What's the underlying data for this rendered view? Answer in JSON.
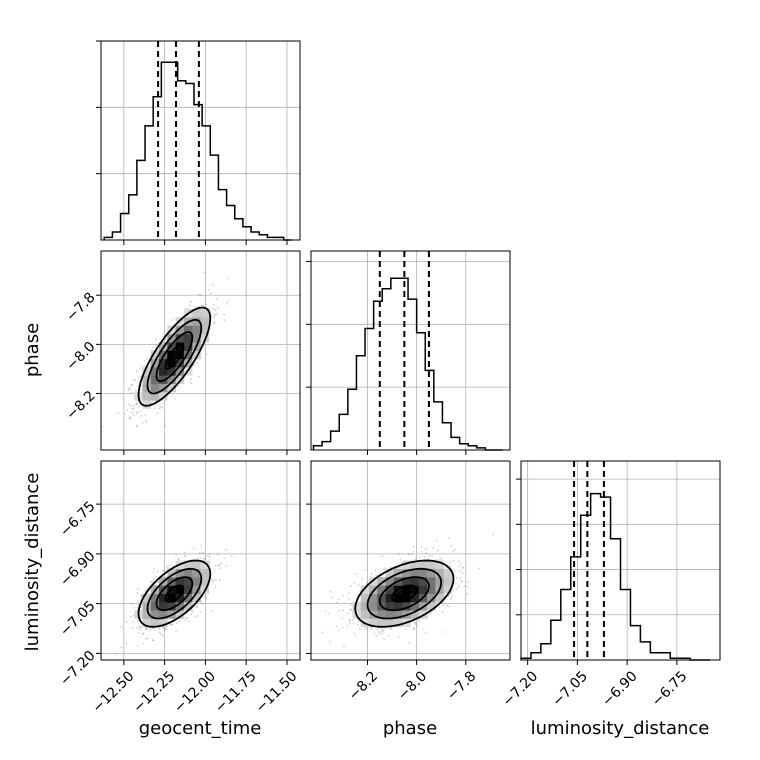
{
  "figure": {
    "kind": "corner-plot"
  },
  "chart_data": [
    {
      "type": "bar",
      "panel": "hist-geocent_time",
      "parameter": "geocent_time",
      "bins": [
        -12.62,
        -12.57,
        -12.52,
        -12.47,
        -12.42,
        -12.37,
        -12.32,
        -12.27,
        -12.22,
        -12.17,
        -12.12,
        -12.07,
        -12.02,
        -11.97,
        -11.92,
        -11.87,
        -11.82,
        -11.77,
        -11.72,
        -11.67,
        -11.62,
        -11.57,
        -11.52,
        -11.47
      ],
      "counts": [
        1,
        3,
        10,
        17,
        30,
        43,
        54,
        67,
        67,
        60,
        59,
        51,
        43,
        32,
        19,
        13,
        8,
        5,
        3,
        2,
        1,
        1,
        0
      ],
      "ylim": [
        0,
        75
      ],
      "yticks": [
        25,
        50,
        75
      ],
      "quantiles": [
        -12.29,
        -12.18,
        -12.04
      ]
    },
    {
      "type": "bar",
      "panel": "hist-phase",
      "parameter": "phase",
      "bins": [
        -8.42,
        -8.385,
        -8.35,
        -8.315,
        -8.28,
        -8.245,
        -8.21,
        -8.175,
        -8.14,
        -8.105,
        -8.07,
        -8.035,
        -8.0,
        -7.965,
        -7.93,
        -7.895,
        -7.86,
        -7.825,
        -7.79,
        -7.755,
        -7.72,
        -7.685,
        -7.65
      ],
      "counts": [
        2,
        4,
        9,
        17,
        29,
        45,
        58,
        71,
        77,
        82,
        82,
        72,
        56,
        38,
        23,
        13,
        6,
        3,
        2,
        1,
        0,
        0
      ],
      "ylim": [
        0,
        95
      ],
      "yticks": [
        30,
        60,
        90
      ],
      "quantiles": [
        -8.15,
        -8.05,
        -7.95
      ]
    },
    {
      "type": "bar",
      "panel": "hist-luminosity_distance",
      "parameter": "luminosity_distance",
      "bins": [
        -7.22,
        -7.19,
        -7.16,
        -7.13,
        -7.1,
        -7.07,
        -7.04,
        -7.01,
        -6.98,
        -6.95,
        -6.92,
        -6.89,
        -6.86,
        -6.83,
        -6.8,
        -6.77,
        -6.74,
        -6.71,
        -6.68,
        -6.65
      ],
      "counts": [
        1,
        4,
        9,
        22,
        39,
        57,
        80,
        92,
        90,
        67,
        39,
        19,
        10,
        4,
        4,
        1,
        1,
        0,
        0
      ],
      "ylim": [
        0,
        110
      ],
      "yticks": [
        25,
        50,
        75,
        100
      ],
      "quantiles": [
        -7.06,
        -7.02,
        -6.97
      ]
    },
    {
      "type": "scatter",
      "panel": "2d-geocent_time-phase",
      "x_param": "geocent_time",
      "y_param": "phase",
      "center": [
        -12.19,
        -8.05
      ],
      "sigma": [
        0.11,
        0.1
      ],
      "correlation": 0.78,
      "contour_levels_sigma": [
        0.5,
        1.0,
        1.5,
        2.0
      ]
    },
    {
      "type": "scatter",
      "panel": "2d-geocent_time-luminosity_distance",
      "x_param": "geocent_time",
      "y_param": "luminosity_distance",
      "center": [
        -12.19,
        -7.02
      ],
      "sigma": [
        0.11,
        0.05
      ],
      "correlation": 0.6,
      "contour_levels_sigma": [
        0.5,
        1.0,
        1.5,
        2.0
      ]
    },
    {
      "type": "scatter",
      "panel": "2d-phase-luminosity_distance",
      "x_param": "phase",
      "y_param": "luminosity_distance",
      "center": [
        -8.05,
        -7.02
      ],
      "sigma": [
        0.1,
        0.05
      ],
      "correlation": 0.45,
      "contour_levels_sigma": [
        0.5,
        1.0,
        1.5,
        2.0
      ]
    }
  ],
  "axes": {
    "geocent_time": {
      "range": [
        -12.64,
        -11.42
      ],
      "ticks": [
        -12.5,
        -12.25,
        -12.0,
        -11.75,
        -11.5
      ],
      "tick_labels": [
        "−12.50",
        "−12.25",
        "−12.00",
        "−11.75",
        "−11.50"
      ],
      "label": "geocent_time"
    },
    "phase": {
      "range": [
        -8.43,
        -7.62
      ],
      "ticks": [
        -8.2,
        -8.0,
        -7.8
      ],
      "tick_labels": [
        "−8.2",
        "−8.0",
        "−7.8"
      ],
      "label": "phase"
    },
    "luminosity_distance": {
      "range": [
        -7.22,
        -6.62
      ],
      "ticks": [
        -7.2,
        -7.05,
        -6.9,
        -6.75
      ],
      "tick_labels": [
        "−7.20",
        "−7.05",
        "−6.90",
        "−6.75"
      ],
      "label": "luminosity_distance"
    }
  },
  "labels": {
    "x_geocent_time": "geocent_time",
    "x_phase": "phase",
    "x_luminosity_distance": "luminosity_distance",
    "y_phase": "phase",
    "y_luminosity_distance": "luminosity_distance"
  }
}
